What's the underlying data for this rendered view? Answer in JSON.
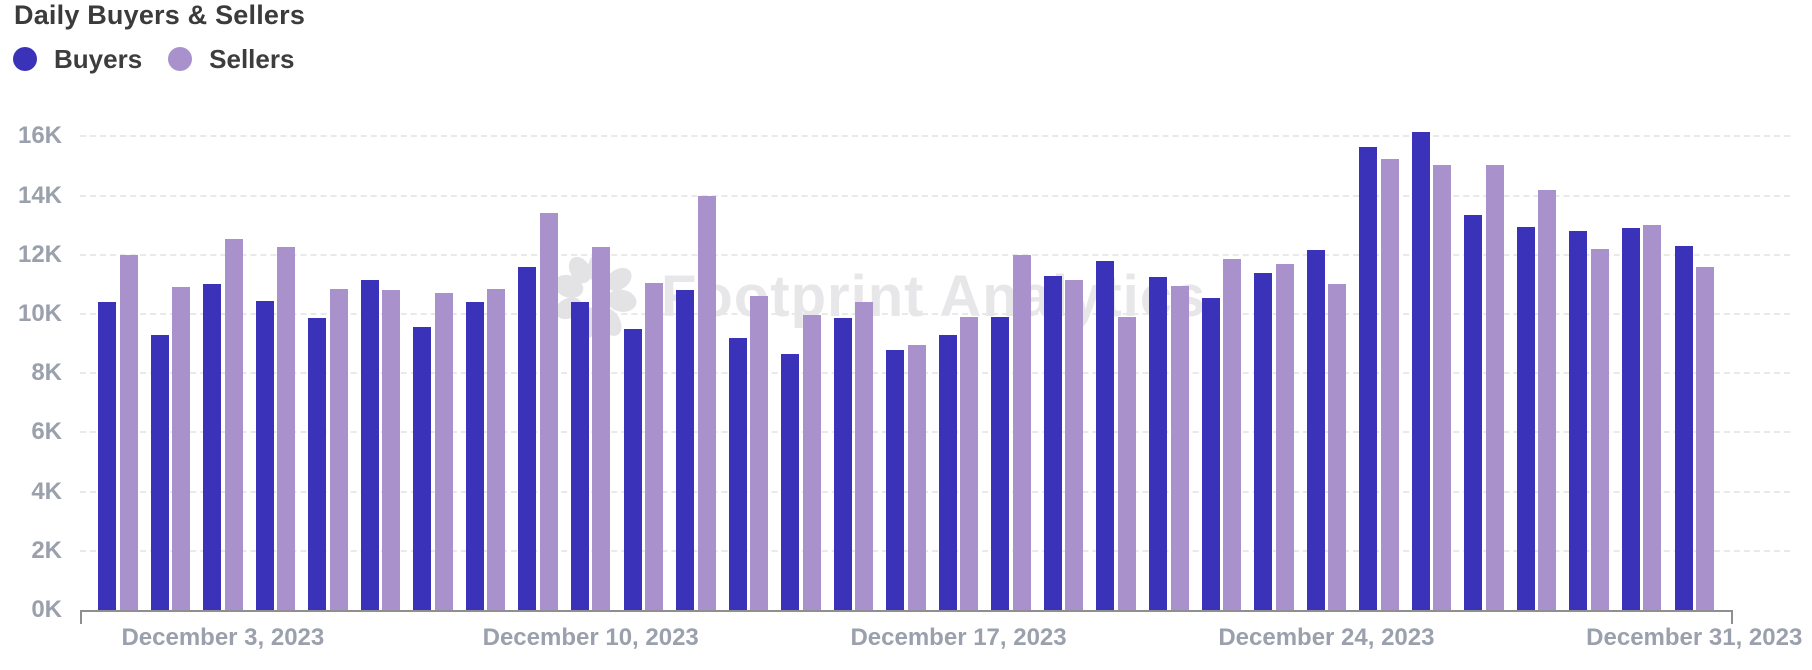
{
  "header": {
    "title": "Daily Buyers & Sellers"
  },
  "legend": {
    "items": [
      {
        "label": "Buyers",
        "color": "#3A33B9"
      },
      {
        "label": "Sellers",
        "color": "#A991CB"
      }
    ]
  },
  "watermark": {
    "text": "Footprint Analytics"
  },
  "axis": {
    "y_tick_labels": [
      "0K",
      "2K",
      "4K",
      "6K",
      "8K",
      "10K",
      "12K",
      "14K",
      "16K"
    ],
    "x_tick_labels": [
      "December 3, 2023",
      "December 10, 2023",
      "December 17, 2023",
      "December 24, 2023",
      "December 31, 2023"
    ]
  },
  "colors": {
    "buyers": "#3A33B9",
    "sellers": "#A991CB",
    "axis_text": "#9aa0ac",
    "gridline": "#e9e9e9",
    "axis_line": "#8f8f8f",
    "title_text": "#3b3b3b",
    "watermark": "#e7e7e9"
  },
  "chart_data": {
    "type": "bar",
    "title": "Daily Buyers & Sellers",
    "xlabel": "",
    "ylabel": "",
    "ylim": [
      0,
      16000
    ],
    "y_tick_step": 2000,
    "y_tick_format": "K",
    "grid": "horizontal-dashed",
    "legend_position": "top-left",
    "categories": [
      "December 1, 2023",
      "December 2, 2023",
      "December 3, 2023",
      "December 4, 2023",
      "December 5, 2023",
      "December 6, 2023",
      "December 7, 2023",
      "December 8, 2023",
      "December 9, 2023",
      "December 10, 2023",
      "December 11, 2023",
      "December 12, 2023",
      "December 13, 2023",
      "December 14, 2023",
      "December 15, 2023",
      "December 16, 2023",
      "December 17, 2023",
      "December 18, 2023",
      "December 19, 2023",
      "December 20, 2023",
      "December 21, 2023",
      "December 22, 2023",
      "December 23, 2023",
      "December 24, 2023",
      "December 25, 2023",
      "December 26, 2023",
      "December 27, 2023",
      "December 28, 2023",
      "December 29, 2023",
      "December 30, 2023",
      "December 31, 2023"
    ],
    "series": [
      {
        "name": "Buyers",
        "color": "#3A33B9",
        "values": [
          10400,
          9300,
          11000,
          10450,
          9850,
          11150,
          9550,
          10400,
          11600,
          10400,
          9500,
          10800,
          9200,
          8650,
          9850,
          8800,
          9300,
          9900,
          11300,
          11800,
          11250,
          10550,
          11400,
          12150,
          15650,
          16150,
          13350,
          12950,
          12800,
          12900,
          12300
        ]
      },
      {
        "name": "Sellers",
        "color": "#A991CB",
        "values": [
          12000,
          10900,
          12550,
          12250,
          10850,
          10800,
          10700,
          10850,
          13400,
          12250,
          11050,
          14000,
          10600,
          9950,
          10400,
          8950,
          9900,
          12000,
          11150,
          9900,
          10950,
          11850,
          11700,
          11000,
          15250,
          15050,
          15050,
          14200,
          12200,
          13000,
          11600
        ]
      }
    ],
    "x_ticks_shown": [
      {
        "index": 2,
        "label": "December 3, 2023"
      },
      {
        "index": 9,
        "label": "December 10, 2023"
      },
      {
        "index": 16,
        "label": "December 17, 2023"
      },
      {
        "index": 23,
        "label": "December 24, 2023"
      },
      {
        "index": 30,
        "label": "December 31, 2023"
      }
    ]
  }
}
